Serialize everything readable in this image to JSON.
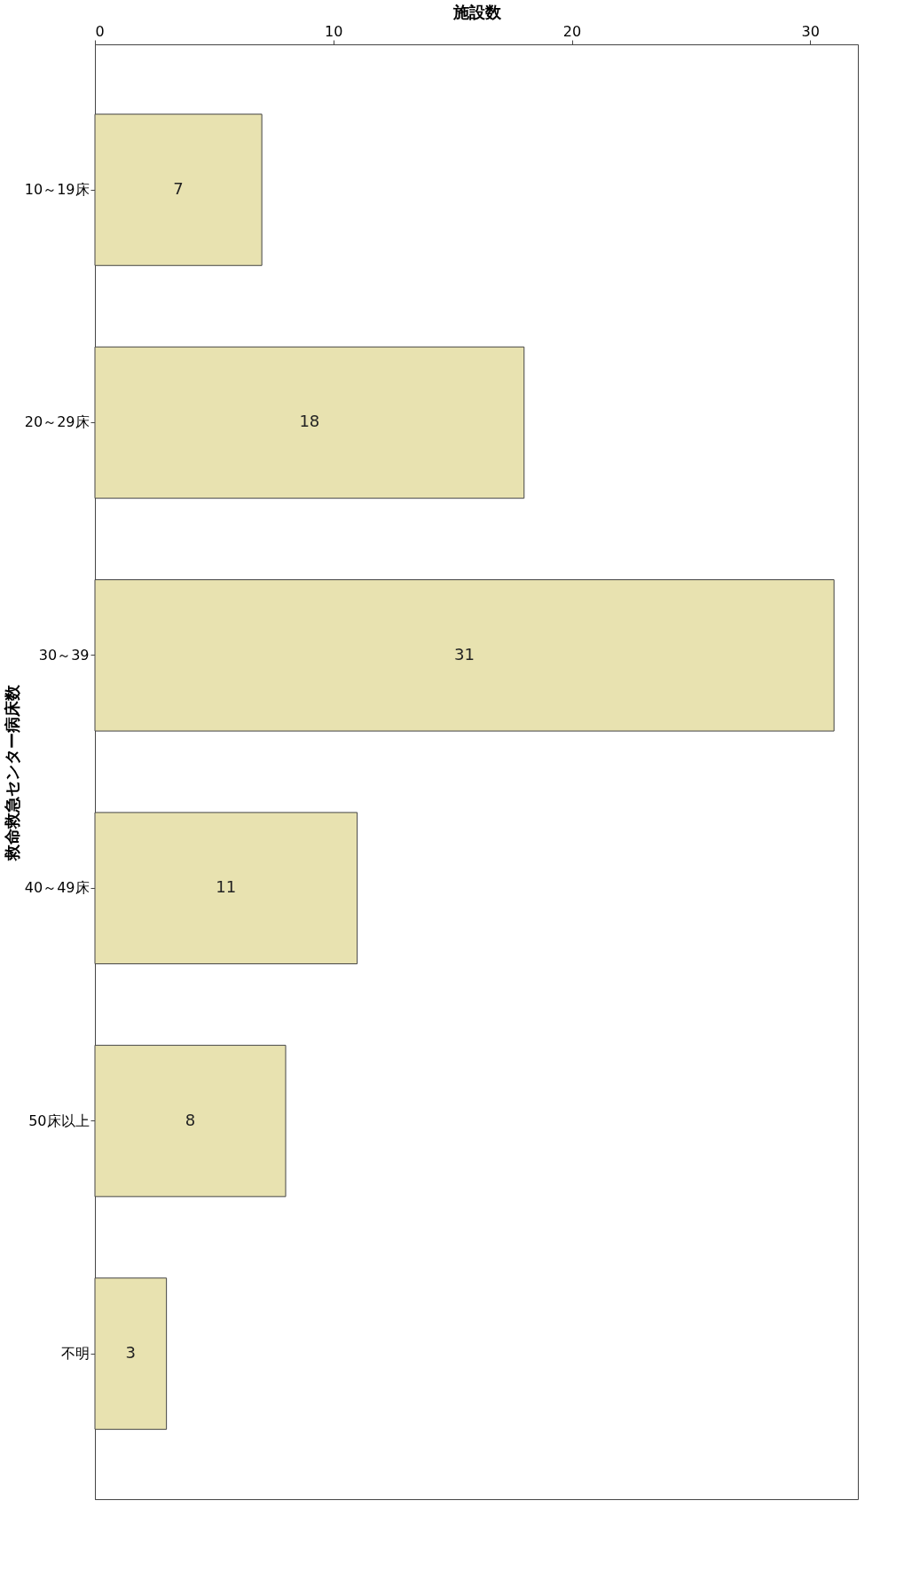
{
  "chart_data": {
    "type": "bar",
    "orientation": "horizontal",
    "xlabel": "施設数",
    "ylabel": "救命救急センター病床数",
    "categories": [
      "10～19床",
      "20～29床",
      "30～39",
      "40～49床",
      "50床以上",
      "不明"
    ],
    "values": [
      7,
      18,
      31,
      11,
      8,
      3
    ],
    "color": "#e8e2b0",
    "xlim": [
      0,
      32
    ],
    "xticks": [
      0,
      10,
      20,
      30
    ],
    "data_labels": true,
    "grid": false
  }
}
